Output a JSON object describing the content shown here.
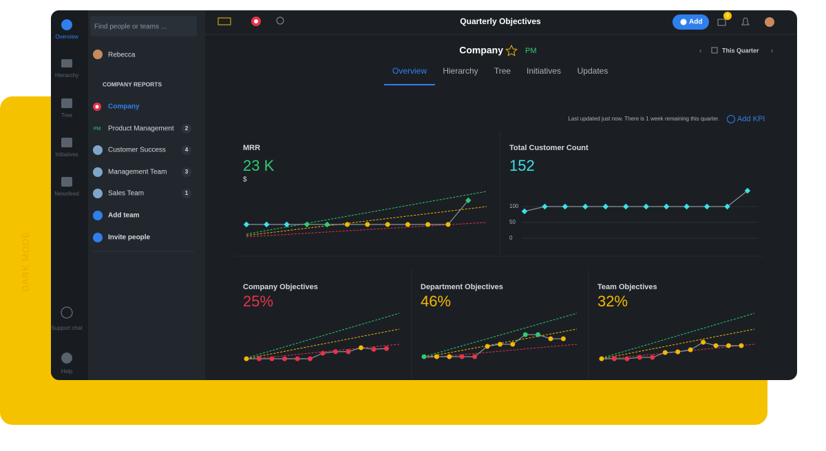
{
  "side_label": "DARK MODE",
  "rail": [
    "Overview",
    "Hierarchy",
    "Tree",
    "Initiatives",
    "Newsfeed",
    "Support chat",
    "Help"
  ],
  "sidebar": {
    "search_placeholder": "Find people or teams ...",
    "user": "Rebecca",
    "section": "COMPANY REPORTS",
    "teams": [
      {
        "name": "Company"
      },
      {
        "name": "Product Management",
        "count": 2
      },
      {
        "name": "Customer Success",
        "count": 4
      },
      {
        "name": "Management Team",
        "count": 3
      },
      {
        "name": "Sales Team",
        "count": 1
      }
    ],
    "add_team": "Add team",
    "invite": "Invite people"
  },
  "topbar": {
    "title": "Quarterly Objectives",
    "add": "Add",
    "notification_count": 9
  },
  "header": {
    "title": "Company",
    "badge": "PM",
    "tabs": [
      "Overview",
      "Hierarchy",
      "Tree",
      "Initiatives",
      "Updates"
    ],
    "period": "This Quarter",
    "status": "Last updated just now. There is 1 week remaining this quarter.",
    "add_kpi": "Add KPI"
  },
  "cards": [
    {
      "title": "MRR",
      "value": "23 K",
      "unit": "$",
      "chart": {
        "type": "line",
        "values": [
          20,
          20,
          20,
          20,
          20,
          20,
          20,
          20,
          20,
          20,
          20,
          23
        ],
        "point_colors": [
          "#3ee0e8",
          "#3ee0e8",
          "#3ee0e8",
          "#2ecc71",
          "#2ecc71",
          "#f5b800",
          "#f5b800",
          "#f5b800",
          "#f5b800",
          "#f5b800",
          "#f5b800",
          "#2ecc71"
        ]
      }
    },
    {
      "title": "Total Customer Count",
      "value": "152",
      "chart": {
        "type": "line",
        "values": [
          85,
          100,
          100,
          100,
          100,
          100,
          100,
          100,
          100,
          100,
          100,
          150
        ],
        "point_colors": [
          "#3ee0e8",
          "#3ee0e8",
          "#3ee0e8",
          "#3ee0e8",
          "#3ee0e8",
          "#3ee0e8",
          "#3ee0e8",
          "#3ee0e8",
          "#3ee0e8",
          "#3ee0e8",
          "#3ee0e8",
          "#3ee0e8"
        ],
        "ylim": [
          0,
          150
        ],
        "yticks": [
          0,
          50,
          100
        ]
      }
    },
    {
      "title": "Company Objectives",
      "value": "25%",
      "chart": {
        "type": "line",
        "values": [
          0,
          0,
          0,
          0,
          0,
          0,
          7,
          9,
          9,
          14,
          12,
          13
        ],
        "point_colors": [
          "#f5b800",
          "#e8334a",
          "#e8334a",
          "#e8334a",
          "#e8334a",
          "#e8334a",
          "#e8334a",
          "#e8334a",
          "#e8334a",
          "#f5b800",
          "#e8334a",
          "#e8334a"
        ]
      }
    },
    {
      "title": "Department Objectives",
      "value": "46%",
      "chart": {
        "type": "line",
        "values": [
          0,
          0,
          0,
          0,
          0,
          15,
          18,
          18,
          32,
          32,
          26,
          26
        ],
        "point_colors": [
          "#2ecc71",
          "#f5b800",
          "#f5b800",
          "#e8334a",
          "#e8334a",
          "#f5b800",
          "#f5b800",
          "#f5b800",
          "#2ecc71",
          "#2ecc71",
          "#f5b800",
          "#f5b800"
        ]
      }
    },
    {
      "title": "Team Objectives",
      "value": "32%",
      "chart": {
        "type": "line",
        "values": [
          0,
          0,
          0,
          2,
          2,
          9,
          10,
          13,
          24,
          19,
          19,
          19
        ],
        "point_colors": [
          "#f5b800",
          "#e8334a",
          "#e8334a",
          "#e8334a",
          "#e8334a",
          "#f5b800",
          "#f5b800",
          "#f5b800",
          "#f5b800",
          "#f5b800",
          "#f5b800",
          "#f5b800"
        ]
      }
    }
  ]
}
